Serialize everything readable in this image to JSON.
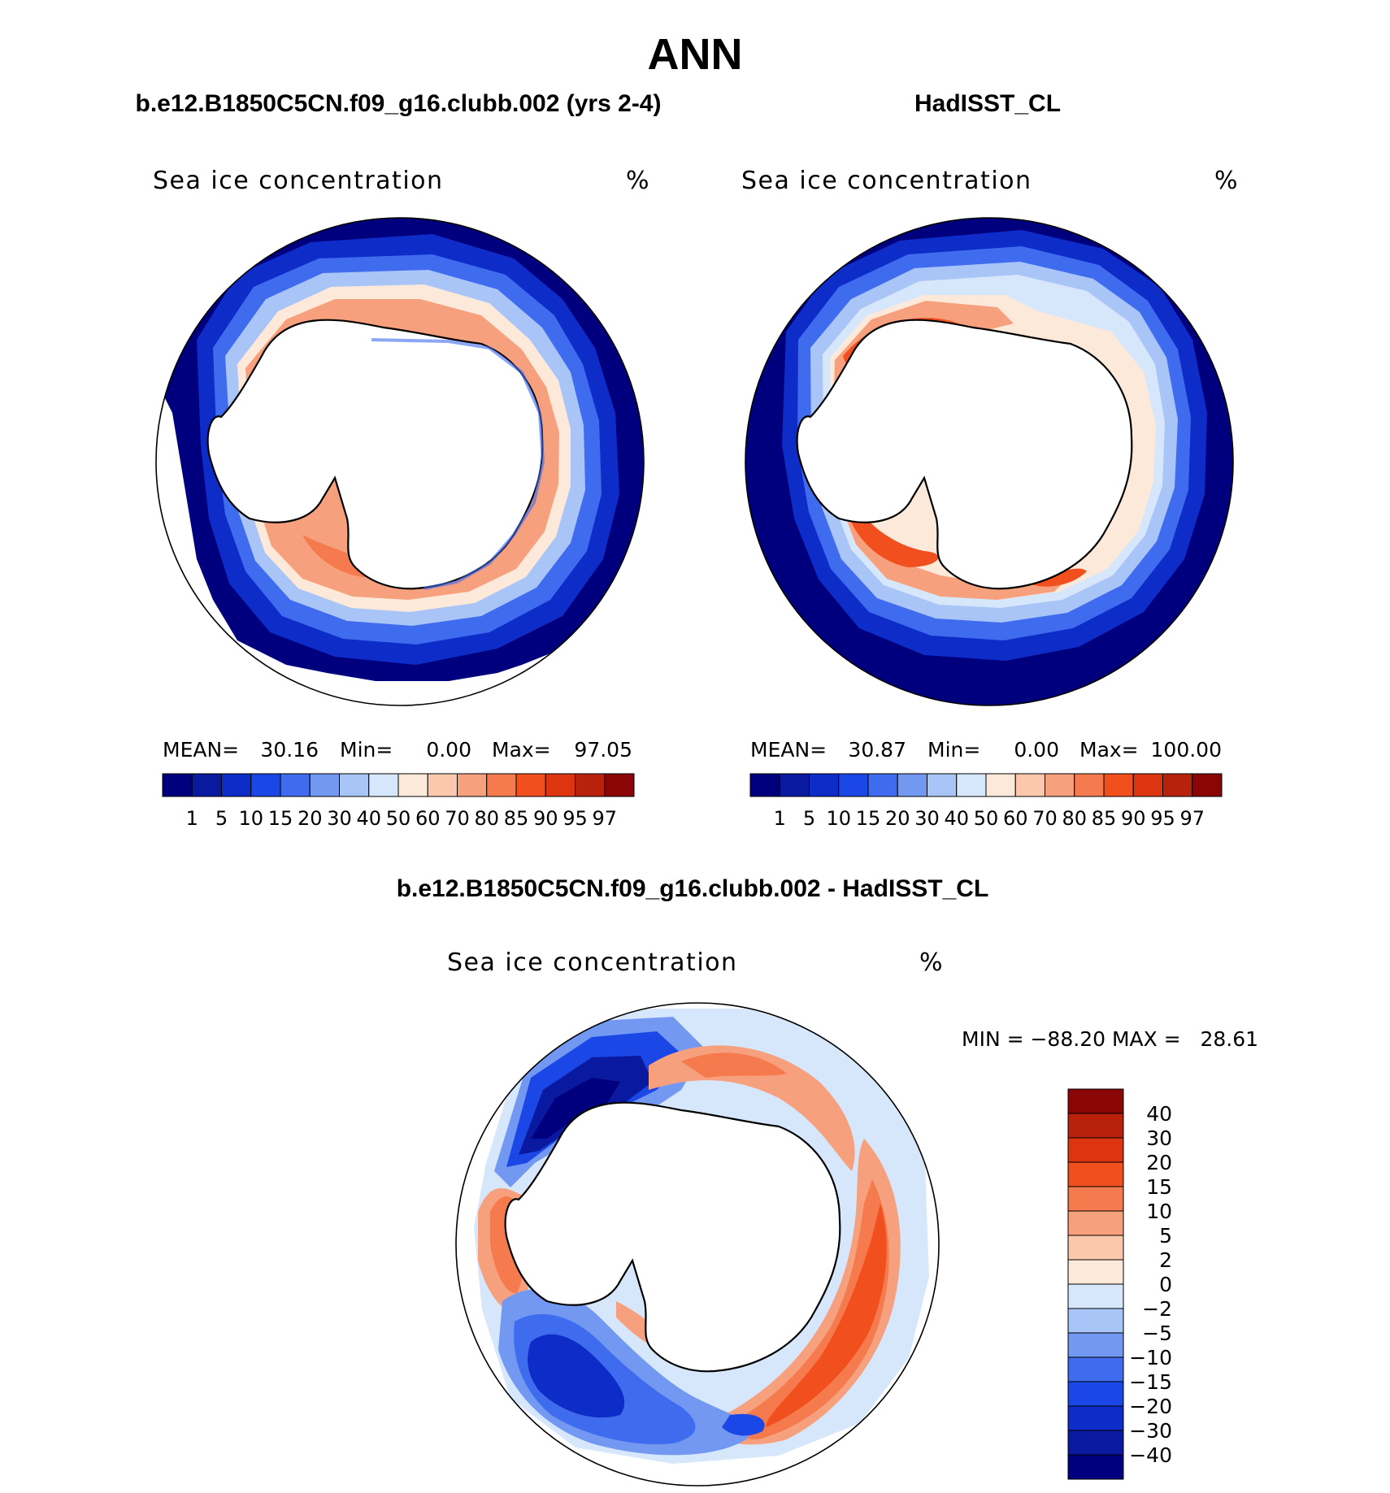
{
  "figure": {
    "title": "ANN",
    "panels": [
      {
        "title": "b.e12.B1850C5CN.f09_g16.clubb.002 (yrs 2-4)",
        "variable_label": "Sea ice concentration",
        "units": "%",
        "stats": {
          "mean_label": "MEAN=",
          "mean": "30.16",
          "min_label": "Min=",
          "min": "0.00",
          "max_label": "Max=",
          "max": "97.05"
        }
      },
      {
        "title": "HadISST_CL",
        "variable_label": "Sea ice concentration",
        "units": "%",
        "stats": {
          "mean_label": "MEAN=",
          "mean": "30.87",
          "min_label": "Min=",
          "min": "0.00",
          "max_label": "Max=",
          "max": "100.00"
        }
      },
      {
        "title": "b.e12.B1850C5CN.f09_g16.clubb.002 - HadISST_CL",
        "variable_label": "Sea ice concentration",
        "units": "%",
        "stats_text": "MIN = −88.20 MAX =   28.61"
      }
    ]
  },
  "colorbars": {
    "absolute": {
      "levels": [
        "1",
        "5",
        "10",
        "15",
        "20",
        "30",
        "40",
        "50",
        "60",
        "70",
        "80",
        "85",
        "90",
        "95",
        "97"
      ],
      "colors": [
        "#00007F",
        "#0A1AA0",
        "#0E2CC8",
        "#1A47E6",
        "#3F6BEE",
        "#7298F2",
        "#A9C4F7",
        "#D7E7FB",
        "#FDE9DA",
        "#FBC8AE",
        "#F7A07D",
        "#F57A4D",
        "#F24F1E",
        "#DC3510",
        "#B8220C",
        "#8A0606"
      ]
    },
    "difference": {
      "levels": [
        "40",
        "30",
        "20",
        "15",
        "10",
        "5",
        "2",
        "0",
        "−2",
        "−5",
        "−10",
        "−15",
        "−20",
        "−30",
        "−40"
      ],
      "colors": [
        "#8A0606",
        "#B8220C",
        "#DC3510",
        "#F24F1E",
        "#F57A4D",
        "#F7A07D",
        "#FBC8AE",
        "#FDE9DA",
        "#D7E7FB",
        "#A9C4F7",
        "#7298F2",
        "#3F6BEE",
        "#1A47E6",
        "#0E2CC8",
        "#0A1AA0",
        "#00007F"
      ]
    }
  }
}
